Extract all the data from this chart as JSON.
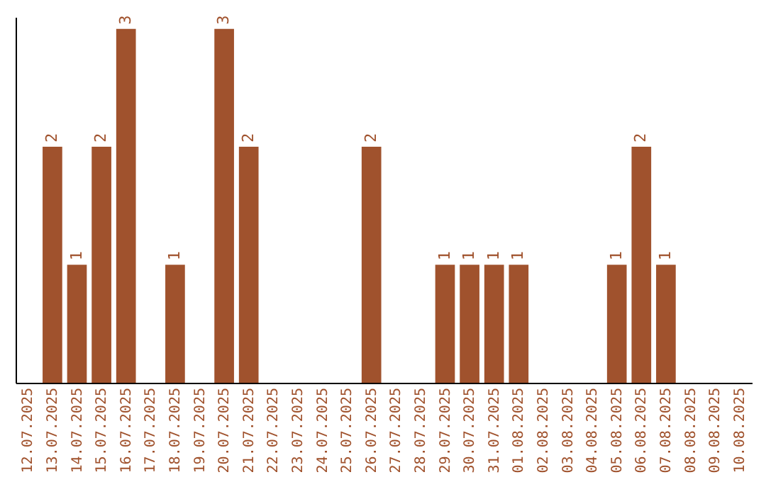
{
  "chart_data": {
    "type": "bar",
    "categories": [
      "12.07.2025",
      "13.07.2025",
      "14.07.2025",
      "15.07.2025",
      "16.07.2025",
      "17.07.2025",
      "18.07.2025",
      "19.07.2025",
      "20.07.2025",
      "21.07.2025",
      "22.07.2025",
      "23.07.2025",
      "24.07.2025",
      "25.07.2025",
      "26.07.2025",
      "27.07.2025",
      "28.07.2025",
      "29.07.2025",
      "30.07.2025",
      "31.07.2025",
      "01.08.2025",
      "02.08.2025",
      "03.08.2025",
      "04.08.2025",
      "05.08.2025",
      "06.08.2025",
      "07.08.2025",
      "08.08.2025",
      "09.08.2025",
      "10.08.2025"
    ],
    "values": [
      null,
      2,
      1,
      2,
      3,
      null,
      1,
      null,
      3,
      2,
      null,
      null,
      null,
      null,
      2,
      null,
      null,
      1,
      1,
      1,
      1,
      null,
      null,
      null,
      1,
      2,
      1,
      null,
      null,
      null
    ],
    "color": "#a0522d",
    "ylim": [
      0,
      3.1
    ],
    "data_labels": true,
    "tick_labels": "x"
  }
}
